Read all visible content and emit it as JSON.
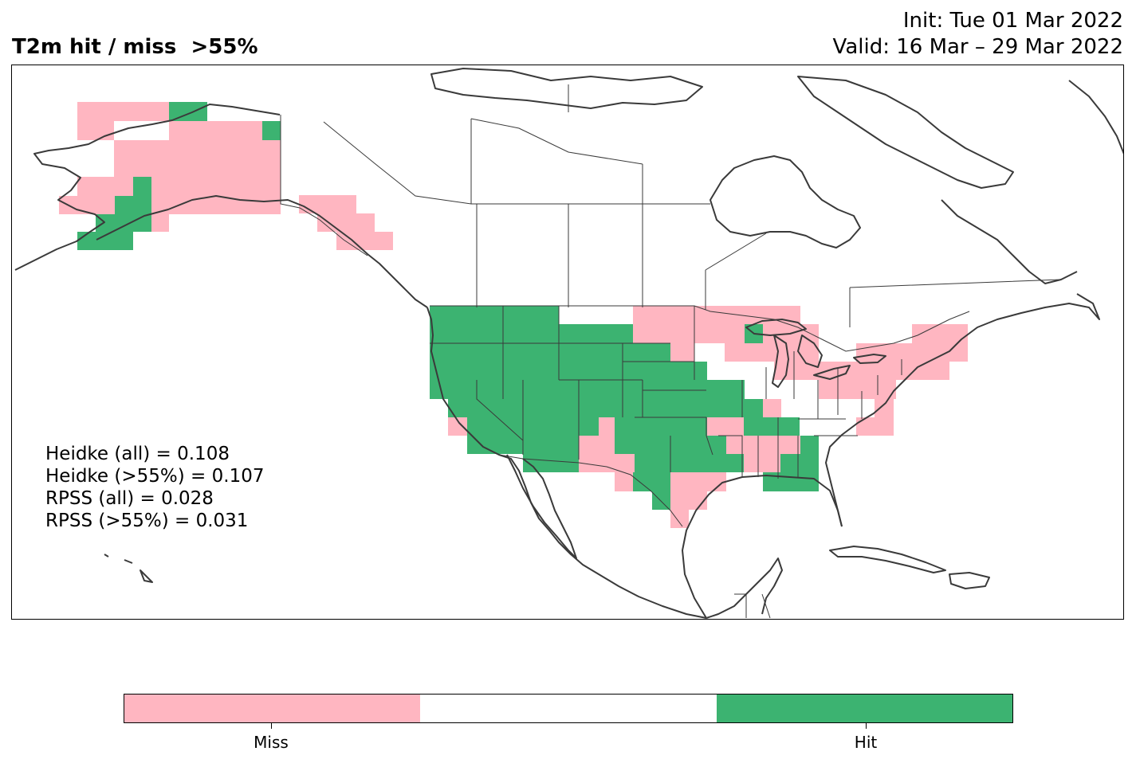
{
  "header": {
    "title": "T2m hit / miss  >55%",
    "init": "Init: Tue 01 Mar 2022",
    "valid": "Valid: 16 Mar – 29 Mar 2022"
  },
  "stats": {
    "heidke_all": "Heidke (all) = 0.108",
    "heidke_55": "Heidke (>55%) = 0.107",
    "rpss_all": "RPSS (all) = 0.028",
    "rpss_55": "RPSS (>55%) = 0.031"
  },
  "colorbar": {
    "categories": [
      "Miss",
      "",
      "Hit"
    ],
    "colors": [
      "#ffb6c1",
      "#ffffff",
      "#3cb371"
    ],
    "miss_label": "Miss",
    "hit_label": "Hit"
  },
  "map": {
    "miss_color": "#ffb6c1",
    "hit_color": "#3cb371",
    "line_color": "#3a3a3a"
  }
}
